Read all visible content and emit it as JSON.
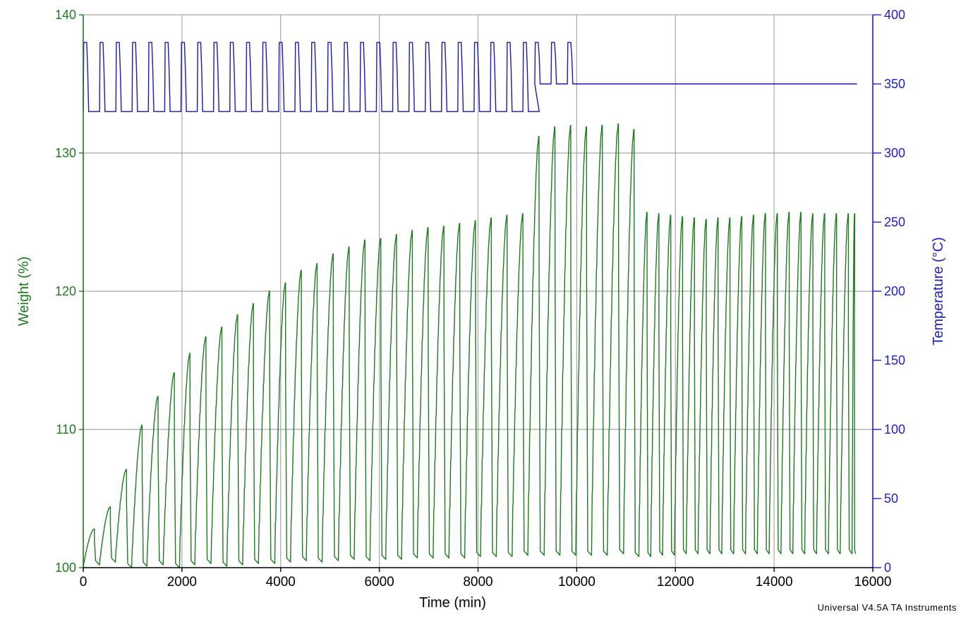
{
  "banner_text": "",
  "footer_text": "Universal V4.5A TA Instruments",
  "colors": {
    "weight": "#1f7a1f",
    "temperature": "#1a1ab4",
    "grid": "#a8a8a8",
    "axis_right": "#2020c0"
  },
  "chart_data": {
    "type": "line",
    "title": "",
    "xlabel": "Time (min)",
    "ylabel_left": "Weight (%)",
    "ylabel_right": "Temperature (°C)",
    "xlim": [
      0,
      16000
    ],
    "ylim_left": [
      100,
      140
    ],
    "ylim_right": [
      0,
      400
    ],
    "x_ticks": [
      0,
      2000,
      4000,
      6000,
      8000,
      10000,
      12000,
      14000,
      16000
    ],
    "y_left_ticks": [
      100,
      110,
      120,
      130,
      140
    ],
    "y_right_ticks": [
      0,
      50,
      100,
      150,
      200,
      250,
      300,
      350,
      400
    ],
    "grid": true,
    "series": [
      {
        "name": "Weight (%)",
        "axis": "left",
        "description": "cyclic sawtooth",
        "cycle_peaks": [
          [
            0,
            102.8
          ],
          [
            330,
            104.4
          ],
          [
            650,
            107.1
          ],
          [
            980,
            110.3
          ],
          [
            1290,
            112.4
          ],
          [
            1620,
            114.1
          ],
          [
            1950,
            115.5
          ],
          [
            2260,
            116.7
          ],
          [
            2590,
            117.4
          ],
          [
            2910,
            118.3
          ],
          [
            3230,
            119.1
          ],
          [
            3550,
            120.0
          ],
          [
            3880,
            120.6
          ],
          [
            4200,
            121.5
          ],
          [
            4520,
            122.0
          ],
          [
            4840,
            122.7
          ],
          [
            5170,
            123.2
          ],
          [
            5490,
            123.7
          ],
          [
            5810,
            123.8
          ],
          [
            6130,
            124.1
          ],
          [
            6450,
            124.4
          ],
          [
            6770,
            124.6
          ],
          [
            7090,
            124.7
          ],
          [
            7410,
            124.9
          ],
          [
            7730,
            125.1
          ],
          [
            8050,
            125.3
          ],
          [
            8370,
            125.5
          ],
          [
            8690,
            125.6
          ],
          [
            9010,
            131.2
          ],
          [
            9340,
            131.9
          ],
          [
            9660,
            132.0
          ],
          [
            9980,
            131.9
          ],
          [
            10300,
            132.0
          ],
          [
            10620,
            132.1
          ],
          [
            10950,
            131.7
          ],
          [
            11260,
            125.7
          ],
          [
            11500,
            125.6
          ],
          [
            11740,
            125.5
          ],
          [
            11980,
            125.4
          ],
          [
            12220,
            125.3
          ],
          [
            12460,
            125.2
          ],
          [
            12700,
            125.3
          ],
          [
            12940,
            125.3
          ],
          [
            13180,
            125.4
          ],
          [
            13420,
            125.5
          ],
          [
            13660,
            125.6
          ],
          [
            13900,
            125.6
          ],
          [
            14140,
            125.7
          ],
          [
            14380,
            125.7
          ],
          [
            14620,
            125.6
          ],
          [
            14860,
            125.6
          ],
          [
            15100,
            125.6
          ],
          [
            15340,
            125.6
          ],
          [
            15580,
            125.6
          ]
        ],
        "trough_values": [
          100.0,
          100.2,
          100.4,
          100.0,
          100.1,
          100.2,
          100.0,
          100.2,
          100.3,
          100.1,
          100.2,
          100.3,
          100.3,
          100.4,
          100.5,
          100.4,
          100.5,
          100.6,
          100.5,
          100.6,
          100.6,
          100.7,
          100.7,
          100.7,
          100.7,
          100.8,
          100.8,
          100.8,
          100.9,
          100.9,
          100.9,
          100.9,
          100.9,
          100.9,
          101.0,
          100.8,
          100.8,
          100.9,
          100.9,
          101.0,
          101.0,
          101.0,
          101.0,
          101.0,
          101.0,
          101.0,
          101.0,
          101.0,
          101.0,
          101.0,
          101.0,
          101.0,
          101.0,
          101.0
        ],
        "end_x": 15650
      },
      {
        "name": "Temperature (°C)",
        "axis": "right",
        "description": "cycling between low and high setpoints",
        "cycles": [
          {
            "start": 0,
            "end": 9150,
            "period": 330,
            "low": 330,
            "high": 380
          },
          {
            "start": 9150,
            "end": 10100,
            "period": 330,
            "low": 350,
            "high": 380
          }
        ],
        "hold": {
          "start": 10100,
          "end": 15680,
          "value": 350
        }
      }
    ]
  }
}
